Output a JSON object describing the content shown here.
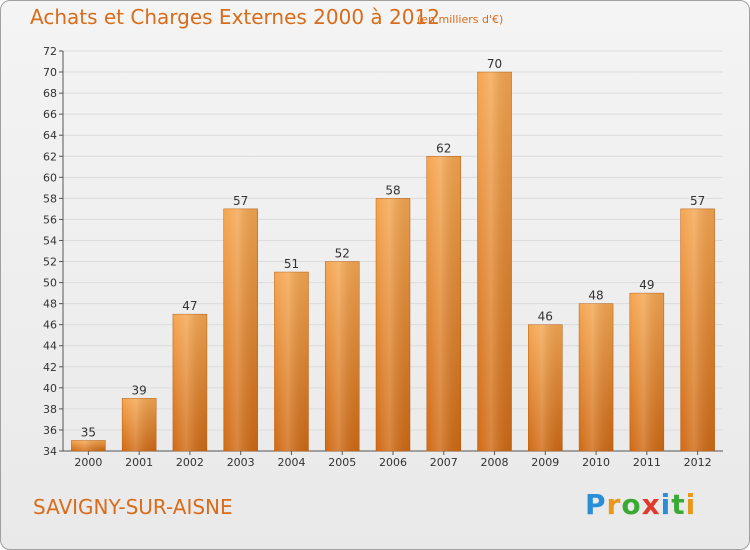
{
  "title": "Achats et Charges Externes 2000 à 2012",
  "subtitle": "(en milliers d'€)",
  "location": "SAVIGNY-SUR-AISNE",
  "brand": {
    "letters": [
      "P",
      "r",
      "o",
      "x",
      "i",
      "t",
      "i"
    ],
    "colors": [
      "#2a8fd6",
      "#e8981a",
      "#3aaa35",
      "#e03a2d",
      "#2a8fd6",
      "#3aaa35",
      "#e8981a"
    ]
  },
  "colors": {
    "bar_top": "#f5a650",
    "bar_bottom": "#d06a14",
    "grid": "#dcdcdc",
    "accent_text": "#d96c1a"
  },
  "chart_data": {
    "type": "bar",
    "categories": [
      "2000",
      "2001",
      "2002",
      "2003",
      "2004",
      "2005",
      "2006",
      "2007",
      "2008",
      "2009",
      "2010",
      "2011",
      "2012"
    ],
    "values": [
      35,
      39,
      47,
      57,
      51,
      52,
      58,
      62,
      70,
      46,
      48,
      49,
      57
    ],
    "data_labels": [
      "35",
      "39",
      "47",
      "57",
      "51",
      "52",
      "58",
      "62",
      "70",
      "46",
      "48",
      "49",
      "57"
    ],
    "ylim": [
      34,
      72
    ],
    "yticks": [
      34,
      36,
      38,
      40,
      42,
      44,
      46,
      48,
      50,
      52,
      54,
      56,
      58,
      60,
      62,
      64,
      66,
      68,
      70,
      72
    ],
    "grid": true,
    "title": "Achats et Charges Externes 2000 à 2012",
    "xlabel": "",
    "ylabel": ""
  }
}
